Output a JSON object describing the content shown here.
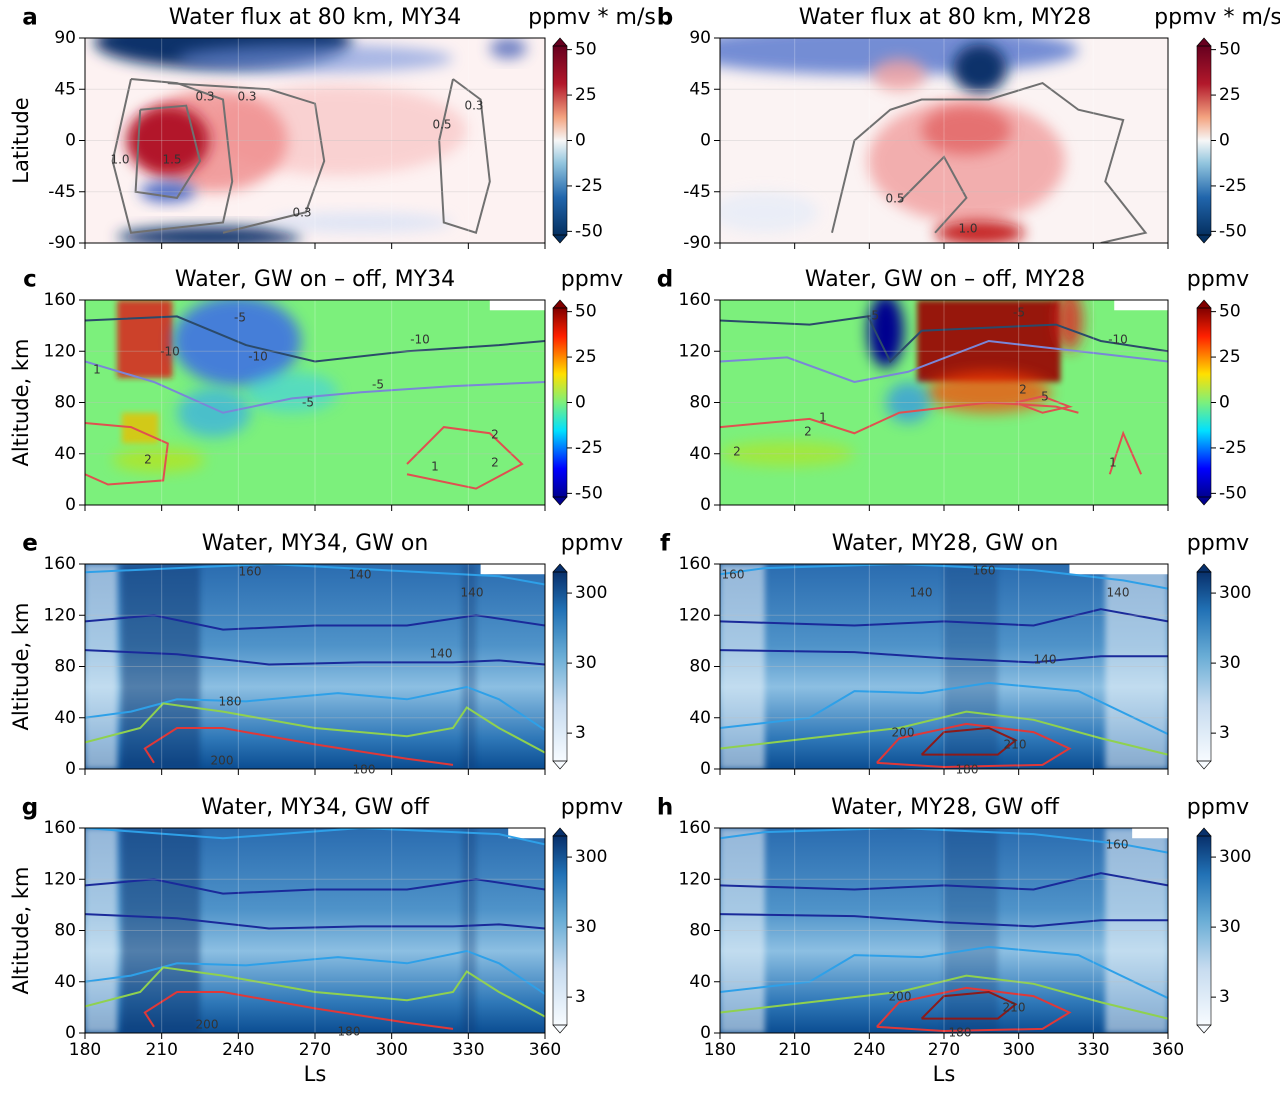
{
  "chart_data": [
    {
      "type": "heatmap",
      "panel": "a",
      "title": "Water flux at 80 km, MY34",
      "colorbar_label": "ppmv * m/s",
      "xlim": [
        180,
        360
      ],
      "xticks": [
        180,
        210,
        240,
        270,
        300,
        330,
        360
      ],
      "show_xtick_labels": false,
      "ylim": [
        -90,
        90
      ],
      "yticks": [
        -90,
        -45,
        0,
        45,
        90
      ],
      "ylabel": "Latitude",
      "grid": true,
      "cmap": "RdBu_r",
      "cscale": "linear",
      "clim": [
        -52,
        52
      ],
      "cticks": [
        -50,
        -25,
        0,
        25,
        50
      ],
      "contour_labels": [
        "0.3",
        "0.3",
        "1.0",
        "1.5",
        "0.3",
        "0.5",
        "0.3"
      ]
    },
    {
      "type": "heatmap",
      "panel": "b",
      "title": "Water flux at 80 km, MY28",
      "colorbar_label": "ppmv * m/s",
      "xlim": [
        180,
        360
      ],
      "xticks": [
        180,
        210,
        240,
        270,
        300,
        330,
        360
      ],
      "show_xtick_labels": false,
      "ylim": [
        -90,
        90
      ],
      "yticks": [
        -90,
        -45,
        0,
        45,
        90
      ],
      "grid": true,
      "cmap": "RdBu_r",
      "cscale": "linear",
      "clim": [
        -52,
        52
      ],
      "cticks": [
        -50,
        -25,
        0,
        25,
        50
      ],
      "contour_labels": [
        "0.5",
        "1.0"
      ]
    },
    {
      "type": "heatmap",
      "panel": "c",
      "title": "Water, GW on – off, MY34",
      "colorbar_label": "ppmv",
      "xlim": [
        180,
        360
      ],
      "xticks": [
        180,
        210,
        240,
        270,
        300,
        330,
        360
      ],
      "show_xtick_labels": false,
      "ylim": [
        0,
        160
      ],
      "yticks": [
        0,
        40,
        80,
        120,
        160
      ],
      "ylabel": "Altitude, km",
      "grid": true,
      "cmap": "jet",
      "cscale": "linear",
      "clim": [
        -52,
        52
      ],
      "cticks": [
        -50,
        -25,
        0,
        25,
        50
      ],
      "contour_labels": [
        "-5",
        "-10",
        "-10",
        "-10",
        "-5",
        "-5",
        "1",
        "2",
        "1",
        "2",
        "2"
      ]
    },
    {
      "type": "heatmap",
      "panel": "d",
      "title": "Water, GW on – off, MY28",
      "colorbar_label": "ppmv",
      "xlim": [
        180,
        360
      ],
      "xticks": [
        180,
        210,
        240,
        270,
        300,
        330,
        360
      ],
      "show_xtick_labels": false,
      "ylim": [
        0,
        160
      ],
      "yticks": [
        0,
        40,
        80,
        120,
        160
      ],
      "grid": true,
      "cmap": "jet",
      "cscale": "linear",
      "clim": [
        -52,
        52
      ],
      "cticks": [
        -50,
        -25,
        0,
        25,
        50
      ],
      "contour_labels": [
        "-5",
        "-5",
        "-10",
        "1",
        "2",
        "2",
        "1",
        "2",
        "5"
      ]
    },
    {
      "type": "heatmap",
      "panel": "e",
      "title": "Water, MY34, GW on",
      "colorbar_label": "ppmv",
      "xlim": [
        180,
        360
      ],
      "xticks": [
        180,
        210,
        240,
        270,
        300,
        330,
        360
      ],
      "show_xtick_labels": false,
      "ylim": [
        0,
        160
      ],
      "yticks": [
        0,
        40,
        80,
        120,
        160
      ],
      "ylabel": "Altitude, km",
      "grid": true,
      "cmap": "Blues",
      "cscale": "log",
      "clim": [
        1.2,
        600
      ],
      "cticks": [
        3,
        30,
        300
      ],
      "contour_labels": [
        "160",
        "140",
        "140",
        "140",
        "180",
        "200",
        "180"
      ]
    },
    {
      "type": "heatmap",
      "panel": "f",
      "title": "Water, MY28, GW on",
      "colorbar_label": "ppmv",
      "xlim": [
        180,
        360
      ],
      "xticks": [
        180,
        210,
        240,
        270,
        300,
        330,
        360
      ],
      "show_xtick_labels": false,
      "ylim": [
        0,
        160
      ],
      "yticks": [
        0,
        40,
        80,
        120,
        160
      ],
      "grid": true,
      "cmap": "Blues",
      "cscale": "log",
      "clim": [
        1.2,
        600
      ],
      "cticks": [
        3,
        30,
        300
      ],
      "contour_labels": [
        "160",
        "160",
        "140",
        "140",
        "140",
        "200",
        "210",
        "180"
      ]
    },
    {
      "type": "heatmap",
      "panel": "g",
      "title": "Water, MY34, GW off",
      "colorbar_label": "ppmv",
      "xlim": [
        180,
        360
      ],
      "xticks": [
        180,
        210,
        240,
        270,
        300,
        330,
        360
      ],
      "show_xtick_labels": true,
      "xlabel": "Ls",
      "ylim": [
        0,
        160
      ],
      "yticks": [
        0,
        40,
        80,
        120,
        160
      ],
      "ylabel": "Altitude, km",
      "grid": true,
      "cmap": "Blues",
      "cscale": "log",
      "clim": [
        1.2,
        600
      ],
      "cticks": [
        3,
        30,
        300
      ],
      "contour_labels": [
        "200",
        "180"
      ]
    },
    {
      "type": "heatmap",
      "panel": "h",
      "title": "Water, MY28, GW off",
      "colorbar_label": "ppmv",
      "xlim": [
        180,
        360
      ],
      "xticks": [
        180,
        210,
        240,
        270,
        300,
        330,
        360
      ],
      "show_xtick_labels": true,
      "xlabel": "Ls",
      "ylim": [
        0,
        160
      ],
      "yticks": [
        0,
        40,
        80,
        120,
        160
      ],
      "grid": true,
      "cmap": "Blues",
      "cscale": "log",
      "clim": [
        1.2,
        600
      ],
      "cticks": [
        3,
        30,
        300
      ],
      "contour_labels": [
        "160",
        "200",
        "210",
        "180"
      ]
    }
  ]
}
